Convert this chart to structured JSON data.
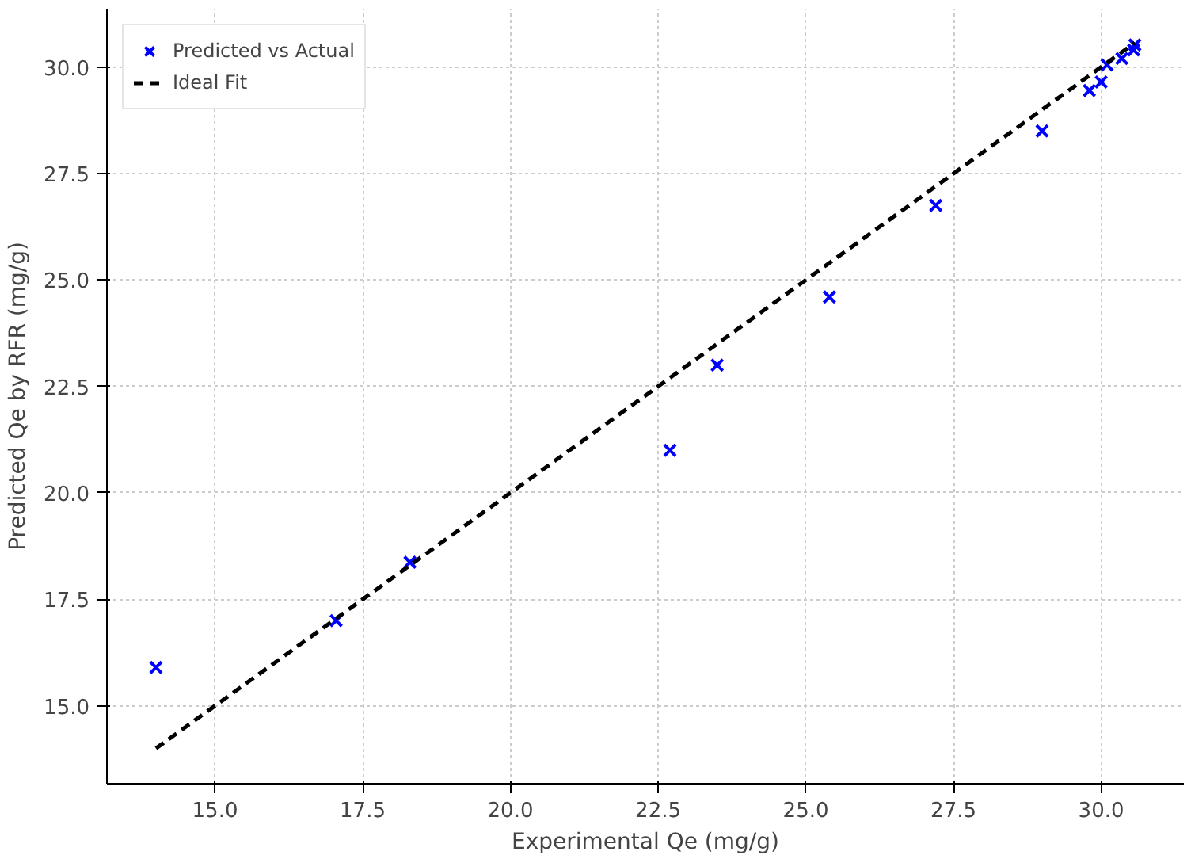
{
  "chart_data": {
    "type": "scatter",
    "xlabel": "Experimental Qe (mg/g)",
    "ylabel": "Predicted Qe by RFR (mg/g)",
    "xlim": [
      13.17,
      31.4
    ],
    "ylim": [
      13.17,
      31.37
    ],
    "xticks": [
      {
        "value": 15,
        "label": "15.0"
      },
      {
        "value": 17.5,
        "label": "17.5"
      },
      {
        "value": 20,
        "label": "20.0"
      },
      {
        "value": 22.5,
        "label": "22.5"
      },
      {
        "value": 25,
        "label": "25.0"
      },
      {
        "value": 27.5,
        "label": "27.5"
      },
      {
        "value": 30,
        "label": "30.0"
      }
    ],
    "yticks": [
      {
        "value": 15,
        "label": "15.0"
      },
      {
        "value": 17.5,
        "label": "17.5"
      },
      {
        "value": 20,
        "label": "20.0"
      },
      {
        "value": 22.5,
        "label": "22.5"
      },
      {
        "value": 25,
        "label": "25.0"
      },
      {
        "value": 27.5,
        "label": "27.5"
      },
      {
        "value": 30,
        "label": "30.0"
      }
    ],
    "grid": true,
    "legend": "top left",
    "series": [
      {
        "name": "Predicted vs Actual",
        "marker": "cross",
        "color": "#0000ff",
        "x": [
          14.0,
          17.05,
          18.3,
          22.7,
          23.5,
          25.4,
          27.2,
          29.0,
          29.8,
          30.0,
          30.1,
          30.35,
          30.5,
          30.57,
          30.55
        ],
        "values": [
          15.9,
          17.0,
          18.37,
          21.0,
          23.0,
          24.6,
          26.75,
          28.5,
          29.45,
          29.65,
          30.05,
          30.2,
          null,
          30.52,
          30.4
        ]
      },
      {
        "name": "Ideal Fit",
        "type": "line",
        "line_style": "dashed",
        "color": "#000000",
        "x": [
          14.0,
          30.57
        ],
        "values": [
          14.0,
          30.57
        ]
      }
    ]
  }
}
